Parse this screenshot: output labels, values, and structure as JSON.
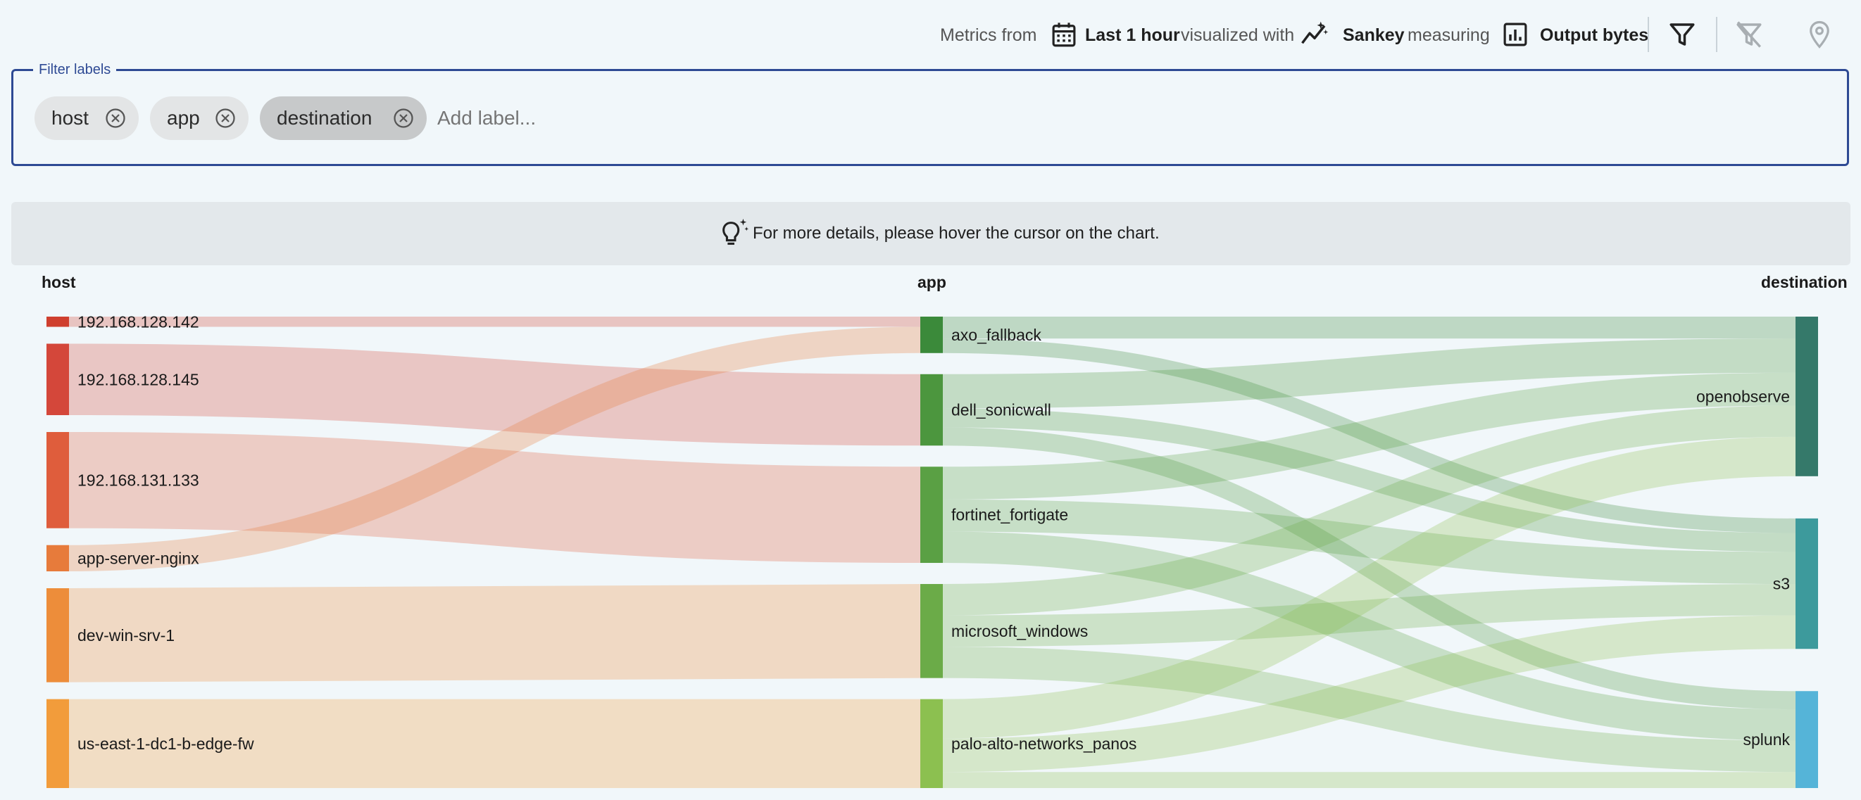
{
  "toolbar": {
    "metrics_from_label": "Metrics from",
    "time_range": "Last 1 hour",
    "visualized_with_label": "visualized with",
    "visualization": "Sankey",
    "measuring_label": "measuring",
    "measure": "Output bytes",
    "icons": [
      "calendar-icon",
      "sankey-icon",
      "bar-chart-icon",
      "filter-icon",
      "filter-off-icon",
      "location-pin-icon"
    ]
  },
  "filter": {
    "legend": "Filter labels",
    "chips": [
      {
        "label": "host",
        "active": false
      },
      {
        "label": "app",
        "active": false
      },
      {
        "label": "destination",
        "active": true
      }
    ],
    "add_placeholder": "Add label..."
  },
  "hint": {
    "text": "For more details, please hover the cursor on the chart."
  },
  "columns": {
    "left": "host",
    "middle": "app",
    "right": "destination"
  },
  "chart_data": {
    "type": "sankey",
    "levels": [
      "host",
      "app",
      "destination"
    ],
    "nodes": [
      {
        "name": "192.168.128.142",
        "level": 0,
        "color": "#cf3f2e"
      },
      {
        "name": "192.168.128.145",
        "level": 0,
        "color": "#d4473a"
      },
      {
        "name": "192.168.131.133",
        "level": 0,
        "color": "#df5d3c"
      },
      {
        "name": "app-server-nginx",
        "level": 0,
        "color": "#e77b3b"
      },
      {
        "name": "dev-win-srv-1",
        "level": 0,
        "color": "#ed8d3a"
      },
      {
        "name": "us-east-1-dc1-b-edge-fw",
        "level": 0,
        "color": "#f29c3b"
      },
      {
        "name": "axo_fallback",
        "level": 1,
        "color": "#3b8a3a"
      },
      {
        "name": "dell_sonicwall",
        "level": 1,
        "color": "#4c963e"
      },
      {
        "name": "fortinet_fortigate",
        "level": 1,
        "color": "#5aa044"
      },
      {
        "name": "microsoft_windows",
        "level": 1,
        "color": "#6bab48"
      },
      {
        "name": "palo-alto-networks_panos",
        "level": 1,
        "color": "#8cc050"
      },
      {
        "name": "openobserve",
        "level": 2,
        "color": "#35796a"
      },
      {
        "name": "s3",
        "level": 2,
        "color": "#3d9a9c"
      },
      {
        "name": "splunk",
        "level": 2,
        "color": "#55b4d8"
      }
    ],
    "links": [
      {
        "source": "192.168.128.142",
        "target": "axo_fallback",
        "value": 1.4
      },
      {
        "source": "192.168.128.145",
        "target": "dell_sonicwall",
        "value": 9.8
      },
      {
        "source": "192.168.131.133",
        "target": "fortinet_fortigate",
        "value": 13.2
      },
      {
        "source": "app-server-nginx",
        "target": "axo_fallback",
        "value": 3.6
      },
      {
        "source": "dev-win-srv-1",
        "target": "microsoft_windows",
        "value": 12.9
      },
      {
        "source": "us-east-1-dc1-b-edge-fw",
        "target": "palo-alto-networks_panos",
        "value": 12.2
      },
      {
        "source": "axo_fallback",
        "target": "openobserve",
        "value": 3.0
      },
      {
        "source": "axo_fallback",
        "target": "s3",
        "value": 2.0
      },
      {
        "source": "dell_sonicwall",
        "target": "openobserve",
        "value": 4.7
      },
      {
        "source": "dell_sonicwall",
        "target": "s3",
        "value": 2.6
      },
      {
        "source": "dell_sonicwall",
        "target": "splunk",
        "value": 2.5
      },
      {
        "source": "fortinet_fortigate",
        "target": "openobserve",
        "value": 4.5
      },
      {
        "source": "fortinet_fortigate",
        "target": "s3",
        "value": 4.4
      },
      {
        "source": "fortinet_fortigate",
        "target": "splunk",
        "value": 4.3
      },
      {
        "source": "microsoft_windows",
        "target": "openobserve",
        "value": 4.3
      },
      {
        "source": "microsoft_windows",
        "target": "s3",
        "value": 4.3
      },
      {
        "source": "microsoft_windows",
        "target": "splunk",
        "value": 4.3
      },
      {
        "source": "palo-alto-networks_panos",
        "target": "openobserve",
        "value": 5.4
      },
      {
        "source": "palo-alto-networks_panos",
        "target": "s3",
        "value": 4.6
      },
      {
        "source": "palo-alto-networks_panos",
        "target": "splunk",
        "value": 2.2
      }
    ]
  }
}
